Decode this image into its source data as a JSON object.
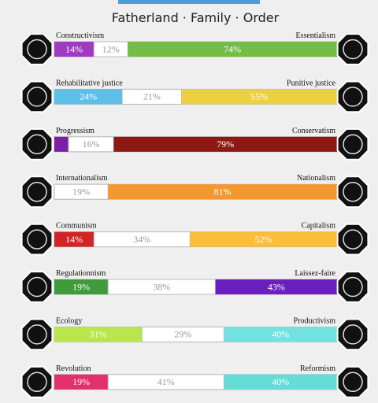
{
  "header": {
    "title": "Fatherland · Family · Order"
  },
  "rows": [
    {
      "left_name": "Constructivism",
      "right_name": "Essentialism",
      "left": {
        "value": 14,
        "label": "14%",
        "color": "#a03ac2"
      },
      "neutral": {
        "value": 12,
        "label": "12%"
      },
      "right": {
        "value": 74,
        "label": "74%",
        "color": "#72bd45"
      }
    },
    {
      "left_name": "Rehabilitative justice",
      "right_name": "Punitive justice",
      "left": {
        "value": 24,
        "label": "24%",
        "color": "#5bbfe8"
      },
      "neutral": {
        "value": 21,
        "label": "21%"
      },
      "right": {
        "value": 55,
        "label": "55%",
        "color": "#edd042"
      }
    },
    {
      "left_name": "Progressism",
      "right_name": "Conservatism",
      "left": {
        "value": 5,
        "color": "#7c1ea6"
      },
      "neutral": {
        "value": 16,
        "label": "16%"
      },
      "right": {
        "value": 79,
        "label": "79%",
        "color": "#8c1a14"
      }
    },
    {
      "left_name": "Internationalism",
      "right_name": "Nationalism",
      "left": {
        "value": 0
      },
      "neutral": {
        "value": 19,
        "label": "19%"
      },
      "right": {
        "value": 81,
        "label": "81%",
        "color": "#f2982f"
      }
    },
    {
      "left_name": "Communism",
      "right_name": "Capitalism",
      "left": {
        "value": 14,
        "label": "14%",
        "color": "#d22424"
      },
      "neutral": {
        "value": 34,
        "label": "34%"
      },
      "right": {
        "value": 52,
        "label": "52%",
        "color": "#fbbd3a"
      }
    },
    {
      "left_name": "Regulationnism",
      "right_name": "Laissez-faire",
      "left": {
        "value": 19,
        "label": "19%",
        "color": "#3f9a3c"
      },
      "neutral": {
        "value": 38,
        "label": "38%"
      },
      "right": {
        "value": 43,
        "label": "43%",
        "color": "#6a1fbf"
      }
    },
    {
      "left_name": "Ecology",
      "right_name": "Productivism",
      "left": {
        "value": 31,
        "label": "31%",
        "color": "#b8e64c"
      },
      "neutral": {
        "value": 29,
        "label": "29%"
      },
      "right": {
        "value": 40,
        "label": "40%",
        "color": "#72e2e0"
      }
    },
    {
      "left_name": "Revolution",
      "right_name": "Reformism",
      "left": {
        "value": 19,
        "label": "19%",
        "color": "#e2306a"
      },
      "neutral": {
        "value": 41,
        "label": "41%"
      },
      "right": {
        "value": 40,
        "label": "40%",
        "color": "#64dcd8"
      }
    }
  ]
}
